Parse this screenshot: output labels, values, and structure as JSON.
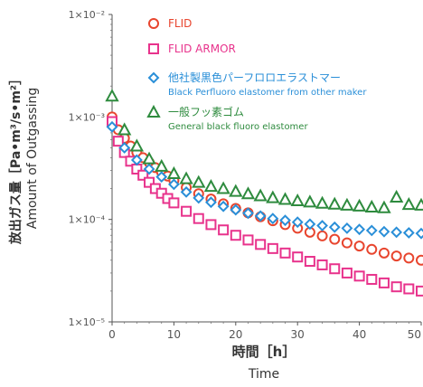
{
  "chart_data": {
    "type": "scatter",
    "y_scale": "log",
    "ylim": [
      1e-05,
      0.01
    ],
    "xlim": [
      0,
      50
    ],
    "x_ticks": [
      0,
      10,
      20,
      30,
      40,
      50
    ],
    "x_tick_labels": [
      "0",
      "10",
      "20",
      "30",
      "40",
      "50"
    ],
    "y_ticks": [
      1e-05,
      0.0001,
      0.001,
      0.01
    ],
    "y_tick_labels": [
      "1×10⁻⁵",
      "1×10⁻⁴",
      "1×10⁻³",
      "1×10⁻²"
    ],
    "xlabel_jp": "時間［h］",
    "xlabel_en": "Time",
    "ylabel_jp": "放出ガス量［Pa•m³/s•m²］",
    "ylabel_en": "Amount of Outgassing",
    "grid": false,
    "legend_position": "top-right",
    "series": [
      {
        "name": "FLID",
        "name_en": "",
        "marker": "circle",
        "color": "#e8452e",
        "x": [
          0,
          1,
          2,
          3,
          4,
          5,
          6,
          7,
          8,
          9,
          10,
          12,
          14,
          16,
          18,
          20,
          22,
          24,
          26,
          28,
          30,
          32,
          34,
          36,
          38,
          40,
          42,
          44,
          46,
          48,
          50
        ],
        "y": [
          0.001,
          0.00075,
          0.00062,
          0.00052,
          0.00045,
          0.0004,
          0.00036,
          0.00032,
          0.00029,
          0.000265,
          0.00024,
          0.000205,
          0.000178,
          0.000158,
          0.000142,
          0.000128,
          0.000116,
          0.000106,
          9.7e-05,
          8.9e-05,
          8.2e-05,
          7.5e-05,
          6.9e-05,
          6.4e-05,
          5.9e-05,
          5.5e-05,
          5.1e-05,
          4.7e-05,
          4.4e-05,
          4.2e-05,
          4e-05
        ]
      },
      {
        "name": "FLID ARMOR",
        "name_en": "",
        "marker": "square",
        "color": "#e8338c",
        "x": [
          0,
          1,
          2,
          3,
          4,
          5,
          6,
          7,
          8,
          9,
          10,
          12,
          14,
          16,
          18,
          20,
          22,
          24,
          26,
          28,
          30,
          32,
          34,
          36,
          38,
          40,
          42,
          44,
          46,
          48,
          50
        ],
        "y": [
          0.0009,
          0.00058,
          0.00045,
          0.00037,
          0.00031,
          0.00027,
          0.00023,
          0.0002,
          0.00018,
          0.00016,
          0.000145,
          0.00012,
          0.000102,
          8.9e-05,
          7.9e-05,
          7e-05,
          6.3e-05,
          5.7e-05,
          5.2e-05,
          4.7e-05,
          4.3e-05,
          3.9e-05,
          3.6e-05,
          3.3e-05,
          3e-05,
          2.8e-05,
          2.6e-05,
          2.4e-05,
          2.2e-05,
          2.1e-05,
          2e-05
        ]
      },
      {
        "name": "他社製黒色パーフロロエラストマー",
        "name_en": "Black Perfluoro elastomer from other maker",
        "marker": "diamond",
        "color": "#2a8fd8",
        "x": [
          0,
          2,
          4,
          6,
          8,
          10,
          12,
          14,
          16,
          18,
          20,
          22,
          24,
          26,
          28,
          30,
          32,
          34,
          36,
          38,
          40,
          42,
          44,
          46,
          48,
          50
        ],
        "y": [
          0.0008,
          0.0005,
          0.00038,
          0.00031,
          0.00026,
          0.00022,
          0.000185,
          0.000162,
          0.000147,
          0.000134,
          0.000124,
          0.000115,
          0.000108,
          0.000102,
          9.8e-05,
          9.4e-05,
          9e-05,
          8.7e-05,
          8.4e-05,
          8.2e-05,
          8e-05,
          7.8e-05,
          7.6e-05,
          7.5e-05,
          7.4e-05,
          7.3e-05
        ]
      },
      {
        "name": "一般フッ素ゴム",
        "name_en": "General black fluoro elastomer",
        "marker": "triangle",
        "color": "#2e8b3e",
        "x": [
          0,
          2,
          4,
          6,
          8,
          10,
          12,
          14,
          16,
          18,
          20,
          22,
          24,
          26,
          28,
          30,
          32,
          34,
          36,
          38,
          40,
          42,
          44,
          46,
          48,
          50
        ],
        "y": [
          0.0016,
          0.00075,
          0.00052,
          0.00039,
          0.00033,
          0.00028,
          0.00025,
          0.00023,
          0.00021,
          0.0002,
          0.000188,
          0.000178,
          0.00017,
          0.000163,
          0.000157,
          0.000152,
          0.000148,
          0.000144,
          0.000141,
          0.000138,
          0.000135,
          0.000132,
          0.00013,
          0.000165,
          0.00014,
          0.000138
        ]
      }
    ]
  }
}
